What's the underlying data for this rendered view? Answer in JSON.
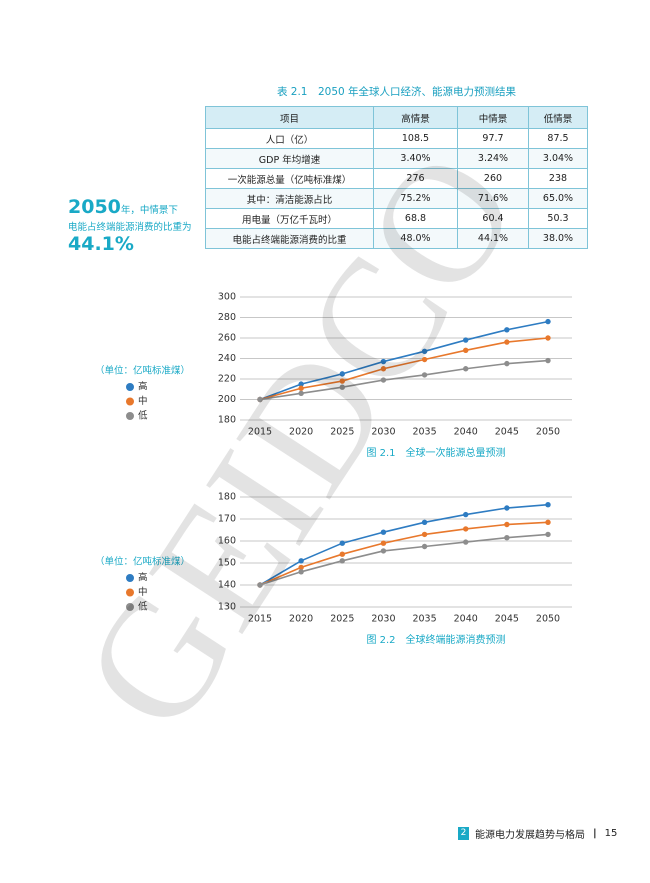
{
  "table": {
    "title": "表 2.1　2050 年全球人口经济、能源电力预测结果",
    "header": [
      "项目",
      "高情景",
      "中情景",
      "低情景"
    ],
    "rows": [
      [
        "人口（亿）",
        "108.5",
        "97.7",
        "87.5"
      ],
      [
        "GDP 年均增速",
        "3.40%",
        "3.24%",
        "3.04%"
      ],
      [
        "一次能源总量（亿吨标准煤）",
        "276",
        "260",
        "238"
      ],
      [
        "其中：清洁能源占比",
        "75.2%",
        "71.6%",
        "65.0%"
      ],
      [
        "用电量（万亿千瓦时）",
        "68.8",
        "60.4",
        "50.3"
      ],
      [
        "电能占终端能源消费的比重",
        "48.0%",
        "44.1%",
        "38.0%"
      ]
    ]
  },
  "sidebar": {
    "year": "2050",
    "line1": "年，中情景下",
    "line2": "电能占终端能源消费的比重为",
    "value": "44.1%"
  },
  "watermark": "GEIDCO",
  "chart_data": [
    {
      "type": "line",
      "title": "图 2.1　全球一次能源总量预测",
      "legend_title": "（单位：亿吨标准煤）",
      "categories": [
        "2015",
        "2020",
        "2025",
        "2030",
        "2035",
        "2040",
        "2045",
        "2050"
      ],
      "ylim": [
        180,
        300
      ],
      "yticks": [
        180,
        200,
        220,
        240,
        260,
        280,
        300
      ],
      "grid": true,
      "series": [
        {
          "name": "高",
          "color": "#2e7cc2",
          "values": [
            200,
            215,
            225,
            237,
            247,
            258,
            268,
            276
          ]
        },
        {
          "name": "中",
          "color": "#e8782c",
          "values": [
            200,
            211,
            218,
            230,
            239,
            248,
            256,
            260
          ]
        },
        {
          "name": "低",
          "color": "#8d8d8d",
          "values": [
            200,
            206,
            212,
            219,
            224,
            230,
            235,
            238
          ]
        }
      ]
    },
    {
      "type": "line",
      "title": "图 2.2　全球终端能源消费预测",
      "legend_title": "（单位：亿吨标准煤）",
      "categories": [
        "2015",
        "2020",
        "2025",
        "2030",
        "2035",
        "2040",
        "2045",
        "2050"
      ],
      "ylim": [
        130,
        180
      ],
      "yticks": [
        130,
        140,
        150,
        160,
        170,
        180
      ],
      "grid": true,
      "series": [
        {
          "name": "高",
          "color": "#2e7cc2",
          "values": [
            140,
            151,
            159,
            164,
            168.5,
            172,
            175,
            176.5
          ]
        },
        {
          "name": "中",
          "color": "#e8782c",
          "values": [
            140,
            148,
            154,
            159,
            163,
            165.5,
            167.5,
            168.5
          ]
        },
        {
          "name": "低",
          "color": "#8d8d8d",
          "values": [
            140,
            146,
            151,
            155.5,
            157.5,
            159.5,
            161.5,
            163
          ]
        }
      ]
    }
  ],
  "footer": {
    "chapter": "2",
    "section": "能源电力发展趋势与格局",
    "separator": "|",
    "page": "15"
  }
}
